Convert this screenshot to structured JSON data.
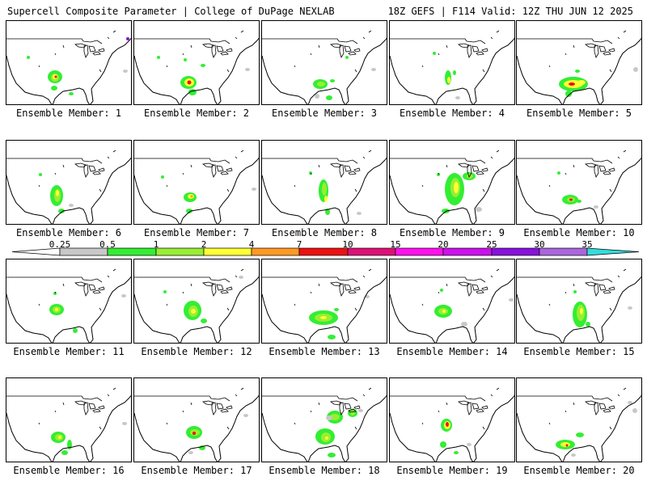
{
  "header": {
    "left": "Supercell Composite Parameter | College of DuPage NEXLAB",
    "right": "18Z GEFS | F114 Valid: 12Z THU JUN 12 2025"
  },
  "colorbar": {
    "levels": [
      "0.25",
      "0.5",
      "1",
      "2",
      "4",
      "7",
      "10",
      "15",
      "20",
      "25",
      "30",
      "35"
    ],
    "colors": [
      "#c8c8c8",
      "#33ee33",
      "#99ee33",
      "#ffff33",
      "#ff9922",
      "#ee1111",
      "#dd1177",
      "#ff11ee",
      "#cc11ee",
      "#8811dd",
      "#aa66dd",
      "#33dddd"
    ]
  },
  "panels": [
    {
      "label": "Ensemble Member: 1"
    },
    {
      "label": "Ensemble Member: 2"
    },
    {
      "label": "Ensemble Member: 3"
    },
    {
      "label": "Ensemble Member: 4"
    },
    {
      "label": "Ensemble Member: 5"
    },
    {
      "label": "Ensemble Member: 6"
    },
    {
      "label": "Ensemble Member: 7"
    },
    {
      "label": "Ensemble Member: 8"
    },
    {
      "label": "Ensemble Member: 9"
    },
    {
      "label": "Ensemble Member: 10"
    },
    {
      "label": "Ensemble Member: 11"
    },
    {
      "label": "Ensemble Member: 12"
    },
    {
      "label": "Ensemble Member: 13"
    },
    {
      "label": "Ensemble Member: 14"
    },
    {
      "label": "Ensemble Member: 15"
    },
    {
      "label": "Ensemble Member: 16"
    },
    {
      "label": "Ensemble Member: 17"
    },
    {
      "label": "Ensemble Member: 18"
    },
    {
      "label": "Ensemble Member: 19"
    },
    {
      "label": "Ensemble Member: 20"
    }
  ]
}
